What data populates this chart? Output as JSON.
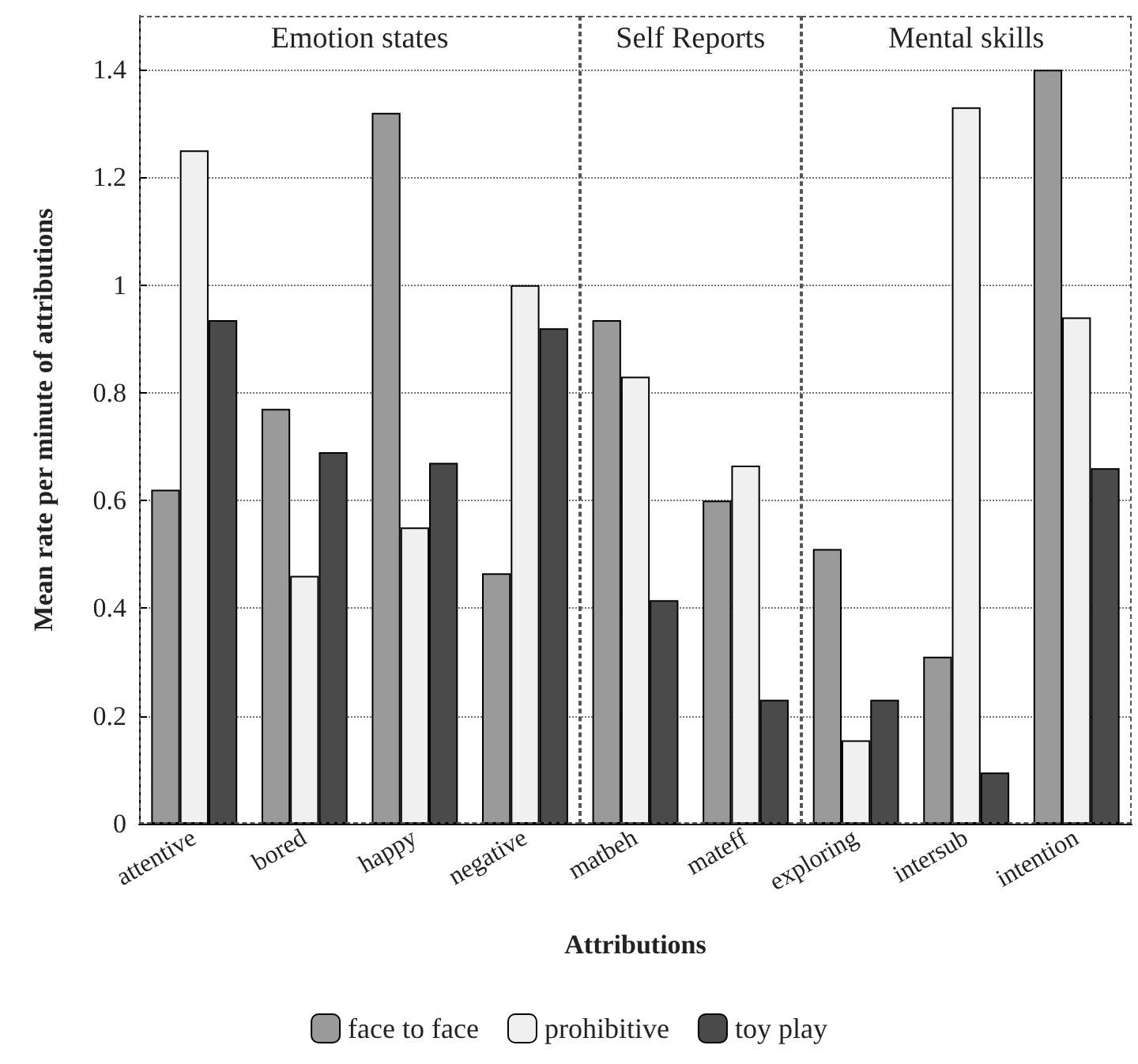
{
  "chart_data": {
    "type": "bar",
    "xlabel": "Attributions",
    "ylabel": "Mean rate per minute of attributions",
    "categories": [
      "attentive",
      "bored",
      "happy",
      "negative",
      "matbeh",
      "mateff",
      "exploring",
      "intersub",
      "intention"
    ],
    "series": [
      {
        "name": "face to face",
        "color": "#9a9a9a",
        "values": [
          0.62,
          0.77,
          1.32,
          0.465,
          0.935,
          0.6,
          0.51,
          0.31,
          1.4
        ]
      },
      {
        "name": "prohibitive",
        "color": "#f0f0f0",
        "values": [
          1.25,
          0.46,
          0.55,
          1.0,
          0.83,
          0.665,
          0.155,
          1.33,
          0.94
        ]
      },
      {
        "name": "toy play",
        "color": "#4a4a4a",
        "values": [
          0.935,
          0.69,
          0.67,
          0.92,
          0.415,
          0.23,
          0.23,
          0.095,
          0.66
        ]
      }
    ],
    "ylim": [
      0,
      1.5
    ],
    "yticks": [
      0,
      0.2,
      0.4,
      0.6,
      0.8,
      1,
      1.2,
      1.4
    ],
    "annotations": [
      "Emotion states",
      "Self Reports",
      "Mental skills"
    ],
    "grid": "y",
    "legend": "bottom"
  }
}
